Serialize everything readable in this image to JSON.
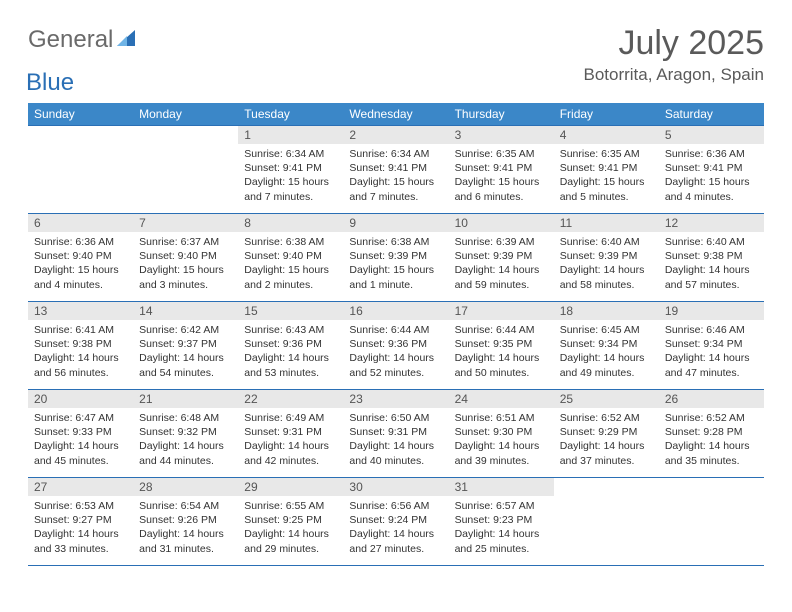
{
  "brand": {
    "word1": "General",
    "word2": "Blue",
    "text_color": "#6a6a6a",
    "accent_color": "#2a6fb5"
  },
  "title": "July 2025",
  "location": "Botorrita, Aragon, Spain",
  "colors": {
    "header_bg": "#3b87c8",
    "header_text": "#ffffff",
    "row_divider": "#2a6fb5",
    "daynum_bg": "#e8e8e8",
    "body_text": "#333333",
    "page_bg": "#ffffff"
  },
  "day_headers": [
    "Sunday",
    "Monday",
    "Tuesday",
    "Wednesday",
    "Thursday",
    "Friday",
    "Saturday"
  ],
  "weeks": [
    [
      null,
      null,
      {
        "n": "1",
        "sunrise": "6:34 AM",
        "sunset": "9:41 PM",
        "daylight": "15 hours and 7 minutes."
      },
      {
        "n": "2",
        "sunrise": "6:34 AM",
        "sunset": "9:41 PM",
        "daylight": "15 hours and 7 minutes."
      },
      {
        "n": "3",
        "sunrise": "6:35 AM",
        "sunset": "9:41 PM",
        "daylight": "15 hours and 6 minutes."
      },
      {
        "n": "4",
        "sunrise": "6:35 AM",
        "sunset": "9:41 PM",
        "daylight": "15 hours and 5 minutes."
      },
      {
        "n": "5",
        "sunrise": "6:36 AM",
        "sunset": "9:41 PM",
        "daylight": "15 hours and 4 minutes."
      }
    ],
    [
      {
        "n": "6",
        "sunrise": "6:36 AM",
        "sunset": "9:40 PM",
        "daylight": "15 hours and 4 minutes."
      },
      {
        "n": "7",
        "sunrise": "6:37 AM",
        "sunset": "9:40 PM",
        "daylight": "15 hours and 3 minutes."
      },
      {
        "n": "8",
        "sunrise": "6:38 AM",
        "sunset": "9:40 PM",
        "daylight": "15 hours and 2 minutes."
      },
      {
        "n": "9",
        "sunrise": "6:38 AM",
        "sunset": "9:39 PM",
        "daylight": "15 hours and 1 minute."
      },
      {
        "n": "10",
        "sunrise": "6:39 AM",
        "sunset": "9:39 PM",
        "daylight": "14 hours and 59 minutes."
      },
      {
        "n": "11",
        "sunrise": "6:40 AM",
        "sunset": "9:39 PM",
        "daylight": "14 hours and 58 minutes."
      },
      {
        "n": "12",
        "sunrise": "6:40 AM",
        "sunset": "9:38 PM",
        "daylight": "14 hours and 57 minutes."
      }
    ],
    [
      {
        "n": "13",
        "sunrise": "6:41 AM",
        "sunset": "9:38 PM",
        "daylight": "14 hours and 56 minutes."
      },
      {
        "n": "14",
        "sunrise": "6:42 AM",
        "sunset": "9:37 PM",
        "daylight": "14 hours and 54 minutes."
      },
      {
        "n": "15",
        "sunrise": "6:43 AM",
        "sunset": "9:36 PM",
        "daylight": "14 hours and 53 minutes."
      },
      {
        "n": "16",
        "sunrise": "6:44 AM",
        "sunset": "9:36 PM",
        "daylight": "14 hours and 52 minutes."
      },
      {
        "n": "17",
        "sunrise": "6:44 AM",
        "sunset": "9:35 PM",
        "daylight": "14 hours and 50 minutes."
      },
      {
        "n": "18",
        "sunrise": "6:45 AM",
        "sunset": "9:34 PM",
        "daylight": "14 hours and 49 minutes."
      },
      {
        "n": "19",
        "sunrise": "6:46 AM",
        "sunset": "9:34 PM",
        "daylight": "14 hours and 47 minutes."
      }
    ],
    [
      {
        "n": "20",
        "sunrise": "6:47 AM",
        "sunset": "9:33 PM",
        "daylight": "14 hours and 45 minutes."
      },
      {
        "n": "21",
        "sunrise": "6:48 AM",
        "sunset": "9:32 PM",
        "daylight": "14 hours and 44 minutes."
      },
      {
        "n": "22",
        "sunrise": "6:49 AM",
        "sunset": "9:31 PM",
        "daylight": "14 hours and 42 minutes."
      },
      {
        "n": "23",
        "sunrise": "6:50 AM",
        "sunset": "9:31 PM",
        "daylight": "14 hours and 40 minutes."
      },
      {
        "n": "24",
        "sunrise": "6:51 AM",
        "sunset": "9:30 PM",
        "daylight": "14 hours and 39 minutes."
      },
      {
        "n": "25",
        "sunrise": "6:52 AM",
        "sunset": "9:29 PM",
        "daylight": "14 hours and 37 minutes."
      },
      {
        "n": "26",
        "sunrise": "6:52 AM",
        "sunset": "9:28 PM",
        "daylight": "14 hours and 35 minutes."
      }
    ],
    [
      {
        "n": "27",
        "sunrise": "6:53 AM",
        "sunset": "9:27 PM",
        "daylight": "14 hours and 33 minutes."
      },
      {
        "n": "28",
        "sunrise": "6:54 AM",
        "sunset": "9:26 PM",
        "daylight": "14 hours and 31 minutes."
      },
      {
        "n": "29",
        "sunrise": "6:55 AM",
        "sunset": "9:25 PM",
        "daylight": "14 hours and 29 minutes."
      },
      {
        "n": "30",
        "sunrise": "6:56 AM",
        "sunset": "9:24 PM",
        "daylight": "14 hours and 27 minutes."
      },
      {
        "n": "31",
        "sunrise": "6:57 AM",
        "sunset": "9:23 PM",
        "daylight": "14 hours and 25 minutes."
      },
      null,
      null
    ]
  ],
  "labels": {
    "sunrise": "Sunrise:",
    "sunset": "Sunset:",
    "daylight": "Daylight:"
  }
}
